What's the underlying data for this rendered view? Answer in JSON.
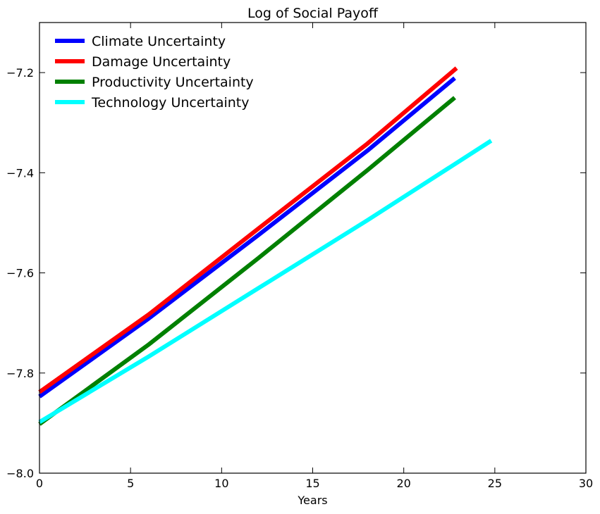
{
  "chart_data": {
    "type": "line",
    "title": "Log of Social Payoff",
    "xlabel": "Years",
    "ylabel": "",
    "xlim": [
      0,
      30
    ],
    "ylim": [
      -8.0,
      -7.1
    ],
    "xticks": [
      "0",
      "5",
      "10",
      "15",
      "20",
      "25",
      "30"
    ],
    "yticks": [
      "−8.0",
      "−7.8",
      "−7.6",
      "−7.4",
      "−7.2"
    ],
    "xtick_values": [
      0,
      5,
      10,
      15,
      20,
      25,
      30
    ],
    "ytick_values": [
      -8.0,
      -7.8,
      -7.6,
      -7.4,
      -7.2
    ],
    "grid": false,
    "legend_position": "top-left",
    "series": [
      {
        "name": "Climate Uncertainty",
        "color": "#0000ff",
        "x": [
          0,
          6,
          12,
          18,
          22.8
        ],
        "values": [
          -7.847,
          -7.691,
          -7.525,
          -7.356,
          -7.211
        ]
      },
      {
        "name": "Damage Uncertainty",
        "color": "#ff0000",
        "x": [
          0,
          6,
          12,
          18,
          22.9
        ],
        "values": [
          -7.838,
          -7.683,
          -7.512,
          -7.342,
          -7.191
        ]
      },
      {
        "name": "Productivity Uncertainty",
        "color": "#008000",
        "x": [
          0,
          6,
          12,
          18,
          22.8
        ],
        "values": [
          -7.902,
          -7.743,
          -7.571,
          -7.395,
          -7.25
        ]
      },
      {
        "name": "Technology Uncertainty",
        "color": "#00ffff",
        "x": [
          0,
          6,
          12,
          18,
          24.8
        ],
        "values": [
          -7.898,
          -7.767,
          -7.631,
          -7.495,
          -7.336
        ]
      }
    ]
  }
}
